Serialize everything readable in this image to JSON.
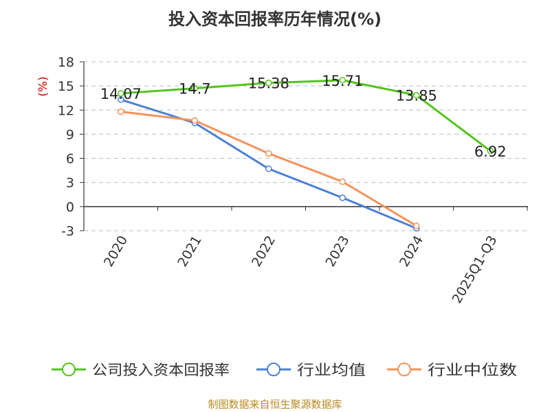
{
  "chart_data": {
    "type": "line",
    "title": "投入资本回报率历年情况(%)",
    "ylabel": "(%)",
    "categories": [
      "2020",
      "2021",
      "2022",
      "2023",
      "2024",
      "2025Q1-Q3"
    ],
    "ylim": [
      -3,
      18
    ],
    "yticks": [
      -3,
      0,
      3,
      6,
      9,
      12,
      15,
      18
    ],
    "grid": true,
    "legend_position": "bottom",
    "series": [
      {
        "name": "公司投入资本回报率",
        "color": "#52c41a",
        "values": [
          14.07,
          14.7,
          15.38,
          15.71,
          13.85,
          6.92
        ],
        "labels": [
          "14.07",
          "14.7",
          "15.38",
          "15.71",
          "13.85",
          "6.92"
        ]
      },
      {
        "name": "行业均值",
        "color": "#4a7fd8",
        "values": [
          13.3,
          10.4,
          4.7,
          1.1,
          -2.7,
          null
        ]
      },
      {
        "name": "行业中位数",
        "color": "#f5935a",
        "values": [
          11.8,
          10.7,
          6.6,
          3.1,
          -2.4,
          null
        ]
      }
    ]
  },
  "footer": {
    "source": "制图数据来自恒生聚源数据库"
  }
}
